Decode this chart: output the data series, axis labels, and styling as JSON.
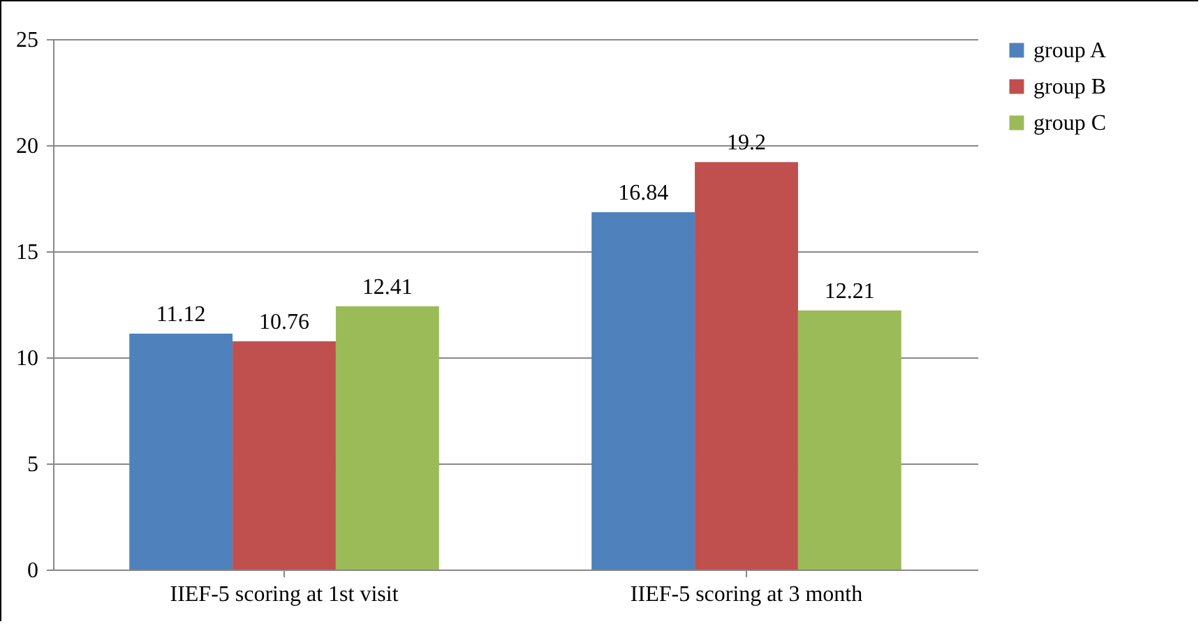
{
  "chart_data": {
    "type": "bar",
    "categories": [
      "IIEF-5 scoring at 1st visit",
      "IIEF-5 scoring at 3 month"
    ],
    "series": [
      {
        "name": "group A",
        "color": "#4f81bd",
        "values": [
          11.12,
          16.84
        ]
      },
      {
        "name": "group B",
        "color": "#c0504d",
        "values": [
          10.76,
          19.2
        ]
      },
      {
        "name": "group C",
        "color": "#9bbb59",
        "values": [
          12.41,
          12.21
        ]
      }
    ],
    "ylim": [
      0,
      25
    ],
    "yticks": [
      0,
      5,
      10,
      15,
      20,
      25
    ],
    "grid": "y",
    "legend": "right",
    "data_labels": true
  }
}
